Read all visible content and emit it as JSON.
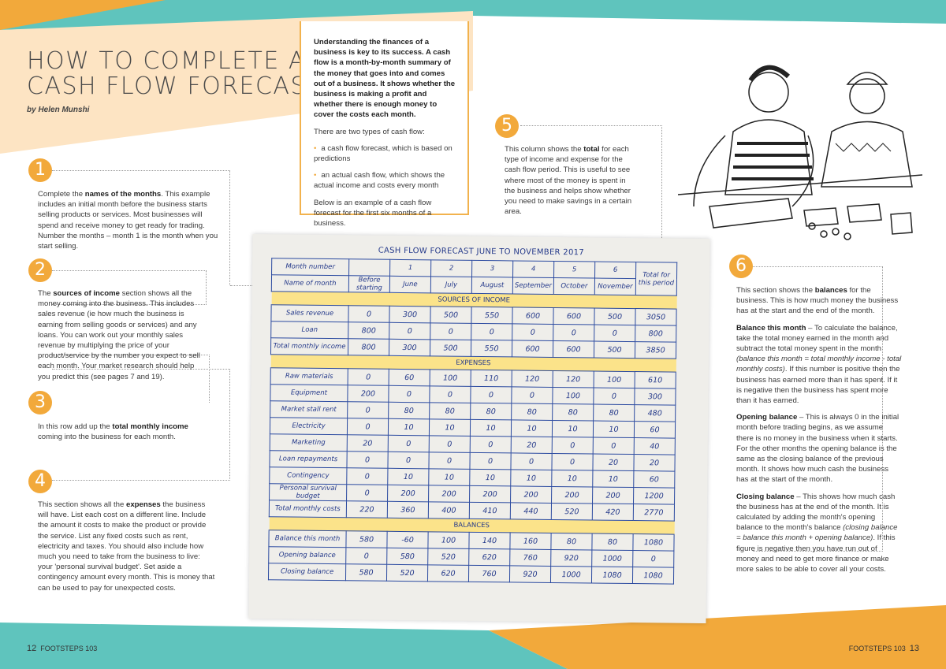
{
  "colors": {
    "teal": "#5fc4bd",
    "orange": "#f2a93b",
    "peach": "#fde4c3",
    "table_ink": "#24398a",
    "band_yellow": "#fbe38a"
  },
  "header": {
    "title_line1": "HOW TO COMPLETE A",
    "title_line2": "CASH FLOW FORECAST",
    "byline": "by Helen Munshi"
  },
  "intro": {
    "lead": "Understanding the finances of a business is key to its success. A cash flow is a month-by-month summary of the money that goes into and comes out of a business. It shows whether the business is making a profit and whether there is enough money to cover the costs each month.",
    "types_intro": "There are two types of cash flow:",
    "bullets": [
      "a cash flow forecast, which is based on predictions",
      "an actual cash flow, which shows the actual income and costs every month"
    ],
    "outro": "Below is an example of a cash flow forecast for the first six months of a business."
  },
  "steps": [
    {
      "number": "1",
      "pre": "Complete the ",
      "bold": "names of the months",
      "post": ". This example includes an initial month before the business starts selling products or services. Most businesses will spend and receive money to get ready for trading. Number the months – month 1 is the month when you start selling."
    },
    {
      "number": "2",
      "pre": "The ",
      "bold": "sources of income",
      "post": " section shows all the money coming into the business. This includes sales revenue (ie how much the business is earning from selling goods or services) and any loans. You can work out your monthly sales revenue by multiplying the price of your product/service by the number you expect to sell each month. Your market research should help you predict this (see pages 7 and 19)."
    },
    {
      "number": "3",
      "pre": "In this row add up the ",
      "bold": "total monthly income",
      "post": " coming into the business for each month."
    },
    {
      "number": "4",
      "pre": "This section shows all the ",
      "bold": "expenses",
      "post": " the business will have. List each cost on a different line. Include the amount it costs to make the product or provide the service. List any fixed costs such as rent, electricity and taxes. You should also include how much you need to take from the business to live: your 'personal survival budget'. Set aside a contingency amount every month. This is money that can be used to pay for unexpected costs."
    },
    {
      "number": "5",
      "pre": "This column shows the ",
      "bold": "total",
      "post": " for each type of income and expense for the cash flow period. This is useful to see where most of the money is spent in the business and helps show whether you need to make savings in a certain area."
    },
    {
      "number": "6",
      "pre": "This section shows the ",
      "bold": "balances",
      "post": " for the business. This is how much money the business has at the start and the end of the month."
    }
  ],
  "step6_details": [
    {
      "bold": "Balance this month",
      "text": " – To calculate the balance, take the total money earned in the month and subtract the total money spent in the month ",
      "italic": "(balance this month = total monthly income - total monthly costs)",
      "tail": ". If this number is positive then the business has earned more than it has spent. If it is negative then the business has spent more than it has earned."
    },
    {
      "bold": "Opening balance",
      "text": " – This is always 0 in the initial month before trading begins, as we assume there is no money in the business when it starts. For the other months the opening balance is the same as the closing balance of the previous month. It shows how much cash the business has at the start of the month.",
      "italic": "",
      "tail": ""
    },
    {
      "bold": "Closing balance",
      "text": " – This shows how much cash the business has at the end of the month. It is calculated by adding the month's opening balance to the month's balance ",
      "italic": "(closing balance = balance this month + opening balance)",
      "tail": ". If this figure is negative then you have run out of money and need to get more finance or make more sales to be able to cover all your costs."
    }
  ],
  "forecast": {
    "title": "CASH FLOW FORECAST JUNE TO NOVEMBER 2017",
    "month_number_label": "Month number",
    "month_numbers": [
      "",
      "1",
      "2",
      "3",
      "4",
      "5",
      "6"
    ],
    "month_name_label": "Name of month",
    "month_names": [
      "Before starting",
      "June",
      "July",
      "August",
      "September",
      "October",
      "November"
    ],
    "total_label": "Total for this period",
    "sections": [
      {
        "name": "SOURCES OF INCOME",
        "rows": [
          {
            "label": "Sales revenue",
            "values": [
              "0",
              "300",
              "500",
              "550",
              "600",
              "600",
              "500",
              "3050"
            ]
          },
          {
            "label": "Loan",
            "values": [
              "800",
              "0",
              "0",
              "0",
              "0",
              "0",
              "0",
              "800"
            ]
          },
          {
            "label": "Total monthly income",
            "values": [
              "800",
              "300",
              "500",
              "550",
              "600",
              "600",
              "500",
              "3850"
            ]
          }
        ]
      },
      {
        "name": "EXPENSES",
        "rows": [
          {
            "label": "Raw materials",
            "values": [
              "0",
              "60",
              "100",
              "110",
              "120",
              "120",
              "100",
              "610"
            ]
          },
          {
            "label": "Equipment",
            "values": [
              "200",
              "0",
              "0",
              "0",
              "0",
              "100",
              "0",
              "300"
            ]
          },
          {
            "label": "Market stall rent",
            "values": [
              "0",
              "80",
              "80",
              "80",
              "80",
              "80",
              "80",
              "480"
            ]
          },
          {
            "label": "Electricity",
            "values": [
              "0",
              "10",
              "10",
              "10",
              "10",
              "10",
              "10",
              "60"
            ]
          },
          {
            "label": "Marketing",
            "values": [
              "20",
              "0",
              "0",
              "0",
              "20",
              "0",
              "0",
              "40"
            ]
          },
          {
            "label": "Loan repayments",
            "values": [
              "0",
              "0",
              "0",
              "0",
              "0",
              "0",
              "20",
              "20"
            ]
          },
          {
            "label": "Contingency",
            "values": [
              "0",
              "10",
              "10",
              "10",
              "10",
              "10",
              "10",
              "60"
            ]
          },
          {
            "label": "Personal survival budget",
            "values": [
              "0",
              "200",
              "200",
              "200",
              "200",
              "200",
              "200",
              "1200"
            ]
          },
          {
            "label": "Total monthly costs",
            "values": [
              "220",
              "360",
              "400",
              "410",
              "440",
              "520",
              "420",
              "2770"
            ]
          }
        ]
      },
      {
        "name": "BALANCES",
        "rows": [
          {
            "label": "Balance this month",
            "values": [
              "580",
              "-60",
              "100",
              "140",
              "160",
              "80",
              "80",
              "1080"
            ]
          },
          {
            "label": "Opening balance",
            "values": [
              "0",
              "580",
              "520",
              "620",
              "760",
              "920",
              "1000",
              "0"
            ]
          },
          {
            "label": "Closing balance",
            "values": [
              "580",
              "520",
              "620",
              "760",
              "920",
              "1000",
              "1080",
              "1080"
            ]
          }
        ]
      }
    ]
  },
  "footer": {
    "left_page": "12",
    "left_pub": "FOOTSTEPS 103",
    "right_pub": "FOOTSTEPS 103",
    "right_page": "13"
  },
  "illustration": {
    "icon": "two-people-doing-accounts-sketch"
  }
}
